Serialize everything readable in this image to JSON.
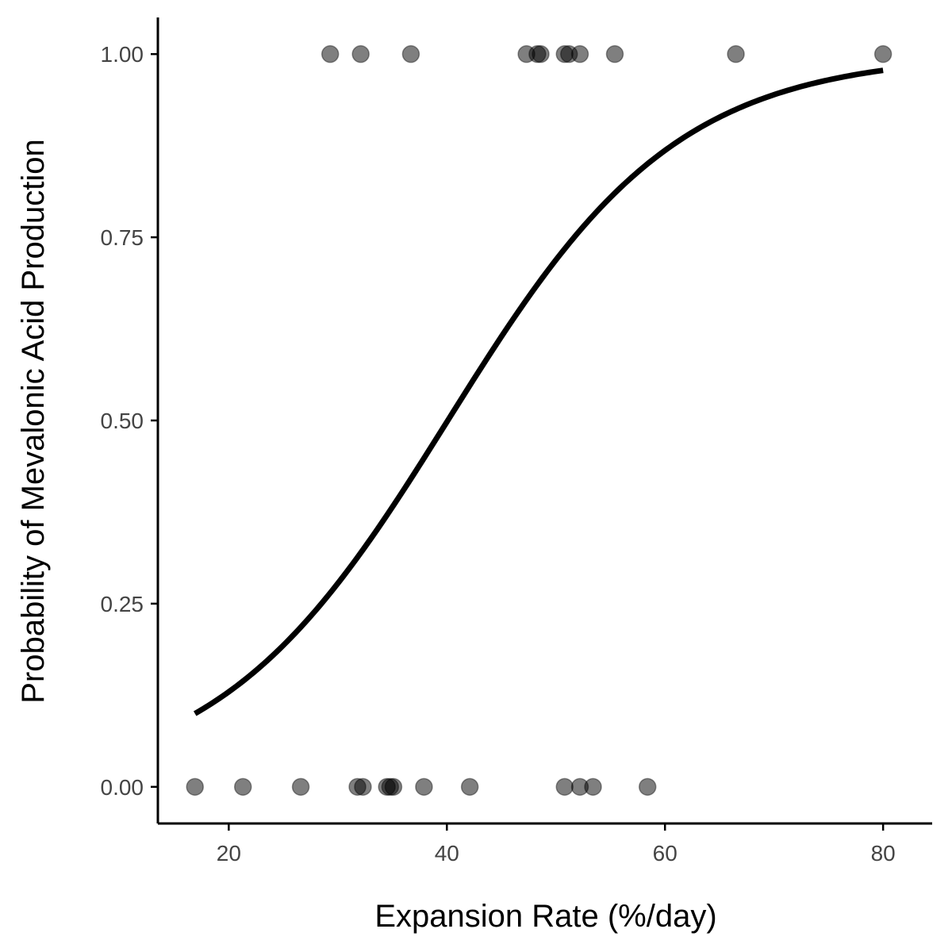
{
  "chart_data": {
    "type": "scatter",
    "title": "",
    "xlabel": "Expansion Rate (%/day)",
    "ylabel": "Probability of Mevalonic Acid Production",
    "xlim": [
      13.5,
      84.5
    ],
    "ylim": [
      -0.05,
      1.05
    ],
    "x_ticks": [
      20,
      40,
      60,
      80
    ],
    "x_tick_labels": [
      "20",
      "40",
      "60",
      "80"
    ],
    "y_ticks": [
      0,
      0.25,
      0.5,
      0.75,
      1
    ],
    "y_tick_labels": [
      "0.00",
      "0.25",
      "0.50",
      "0.75",
      "1.00"
    ],
    "grid": false,
    "legend": "none",
    "series": [
      {
        "kind": "points",
        "color": "#000000",
        "opacity": 0.5,
        "x": [
          16.9,
          21.3,
          26.6,
          31.8,
          32.3,
          34.5,
          34.8,
          35.1,
          37.9,
          42.1,
          50.8,
          52.2,
          53.4,
          58.4,
          29.3,
          32.1,
          36.7,
          47.3,
          48.3,
          48.6,
          50.8,
          51.2,
          52.2,
          55.4,
          66.5,
          80.0
        ],
        "y": [
          0,
          0,
          0,
          0,
          0,
          0,
          0,
          0,
          0,
          0,
          0,
          0,
          0,
          0,
          1,
          1,
          1,
          1,
          1,
          1,
          1,
          1,
          1,
          1,
          1,
          1
        ]
      },
      {
        "kind": "line",
        "model": "logistic",
        "color": "#000000",
        "intercept": -3.8,
        "slope": 0.0948,
        "x_range": [
          16.9,
          80.0
        ]
      }
    ]
  }
}
